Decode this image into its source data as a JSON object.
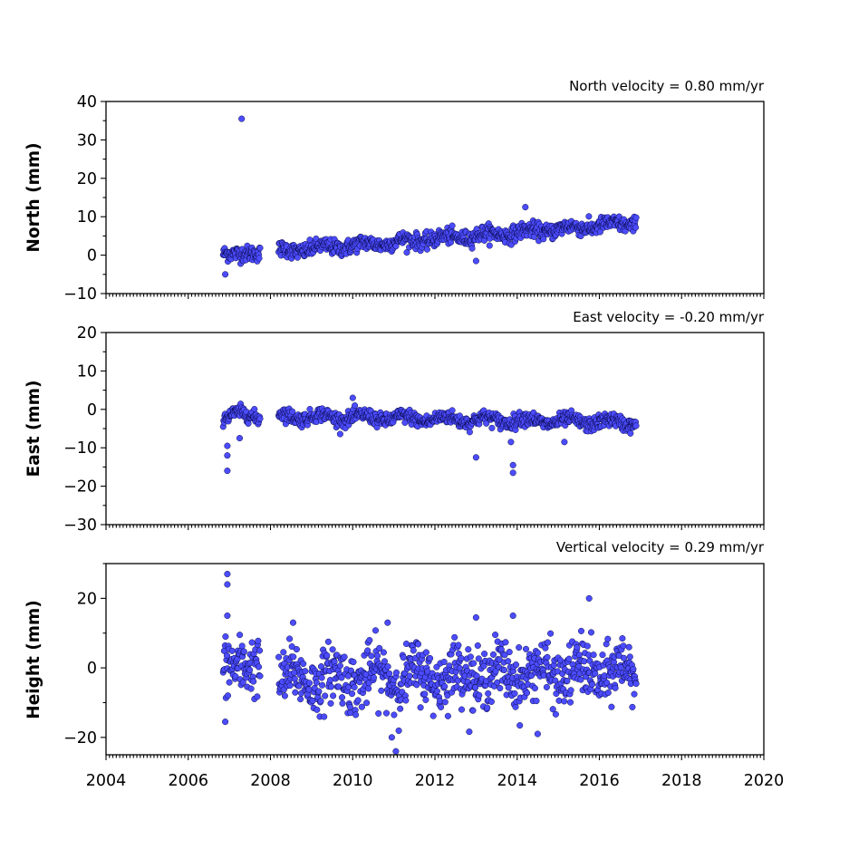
{
  "chart_data": [
    {
      "type": "scatter",
      "panel": "north",
      "ylabel": "North (mm)",
      "annotation": "North velocity = 0.80 mm/yr",
      "ylim": [
        -10,
        40
      ],
      "yticks": [
        -10,
        0,
        10,
        20,
        30,
        40
      ],
      "yticklabels": [
        "−10",
        "0",
        "10",
        "20",
        "30",
        "40"
      ],
      "xlim": [
        2004,
        2020
      ],
      "marker_color": "#4c4cff",
      "edge_color": "#000033",
      "velocity_mm_per_yr": 0.8,
      "coverage": [
        [
          2006.85,
          2007.75
        ],
        [
          2008.2,
          2016.9
        ]
      ],
      "outliers": [
        {
          "x": 2007.3,
          "y": 35.5
        },
        {
          "x": 2006.9,
          "y": -5.0
        },
        {
          "x": 2013.0,
          "y": -1.5
        },
        {
          "x": 2014.2,
          "y": 12.5
        }
      ]
    },
    {
      "type": "scatter",
      "panel": "east",
      "ylabel": "East (mm)",
      "annotation": "East velocity = -0.20 mm/yr",
      "ylim": [
        -30,
        20
      ],
      "yticks": [
        -30,
        -20,
        -10,
        0,
        10,
        20
      ],
      "yticklabels": [
        "−30",
        "−20",
        "−10",
        "0",
        "10",
        "20"
      ],
      "xlim": [
        2004,
        2020
      ],
      "marker_color": "#4c4cff",
      "edge_color": "#000033",
      "velocity_mm_per_yr": -0.2,
      "coverage": [
        [
          2006.85,
          2007.75
        ],
        [
          2008.2,
          2016.9
        ]
      ],
      "outliers": [
        {
          "x": 2006.95,
          "y": -16.0
        },
        {
          "x": 2006.95,
          "y": -12.0
        },
        {
          "x": 2006.95,
          "y": -9.5
        },
        {
          "x": 2007.25,
          "y": -7.5
        },
        {
          "x": 2013.0,
          "y": -12.5
        },
        {
          "x": 2013.9,
          "y": -14.5
        },
        {
          "x": 2013.9,
          "y": -16.5
        },
        {
          "x": 2013.85,
          "y": -8.5
        },
        {
          "x": 2015.15,
          "y": -8.5
        },
        {
          "x": 2010.0,
          "y": 3.0
        }
      ]
    },
    {
      "type": "scatter",
      "panel": "height",
      "ylabel": "Height (mm)",
      "annotation": "Vertical velocity = 0.29 mm/yr",
      "ylim": [
        -25,
        30
      ],
      "yticks": [
        -20,
        0,
        20
      ],
      "yticklabels": [
        "−20",
        "0",
        "20"
      ],
      "xlim": [
        2004,
        2020
      ],
      "xticks": [
        2004,
        2006,
        2008,
        2010,
        2012,
        2014,
        2016,
        2018,
        2020
      ],
      "xticklabels": [
        "2004",
        "2006",
        "2008",
        "2010",
        "2012",
        "2014",
        "2016",
        "2018",
        "2020"
      ],
      "marker_color": "#4c4cff",
      "edge_color": "#000033",
      "velocity_mm_per_yr": 0.29,
      "coverage": [
        [
          2006.85,
          2007.75
        ],
        [
          2008.2,
          2016.9
        ]
      ],
      "outliers": [
        {
          "x": 2006.95,
          "y": 27.0
        },
        {
          "x": 2006.95,
          "y": 24.0
        },
        {
          "x": 2006.95,
          "y": 15.0
        },
        {
          "x": 2008.55,
          "y": 13.0
        },
        {
          "x": 2010.85,
          "y": 13.0
        },
        {
          "x": 2013.0,
          "y": 14.5
        },
        {
          "x": 2013.9,
          "y": 15.0
        },
        {
          "x": 2015.75,
          "y": 20.0
        },
        {
          "x": 2011.05,
          "y": -24.0
        },
        {
          "x": 2010.95,
          "y": -20.0
        },
        {
          "x": 2014.5,
          "y": -19.0
        },
        {
          "x": 2006.9,
          "y": -15.5
        }
      ]
    }
  ]
}
